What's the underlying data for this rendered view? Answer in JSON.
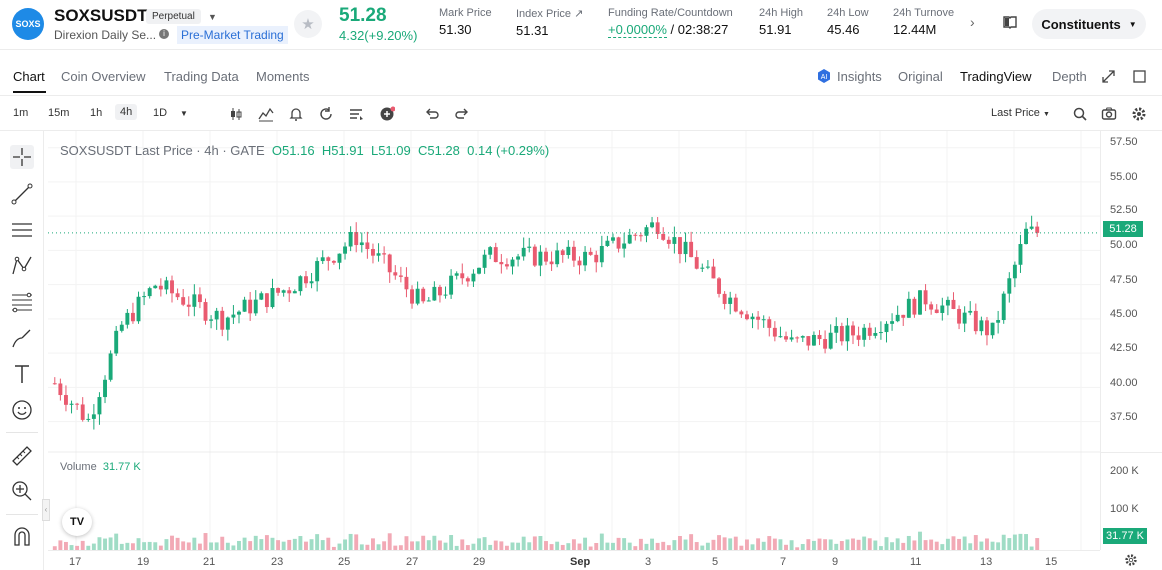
{
  "header": {
    "logo_text": "SOXS",
    "symbol": "SOXSUSDT",
    "contract_badge": "Perpetual",
    "subname": "Direxion Daily Se...",
    "pre_market": "Pre-Market Trading",
    "last_price": "51.28",
    "change": "4.32(+9.20%)",
    "stats": [
      {
        "label": "Mark Price",
        "value": "51.30"
      },
      {
        "label": "Index Price ↗",
        "value": "51.31"
      },
      {
        "label": "Funding Rate/Countdown",
        "value_green": "+0.0000%",
        "value": "/ 02:38:27"
      },
      {
        "label": "24h High",
        "value": "51.91"
      },
      {
        "label": "24h Low",
        "value": "45.46"
      },
      {
        "label": "24h Turnove",
        "value": "12.44M"
      }
    ],
    "constituents_label": "Constituents"
  },
  "tabs": [
    "Chart",
    "Coin Overview",
    "Trading Data",
    "Moments"
  ],
  "right_tabs": [
    "Insights",
    "Original",
    "TradingView",
    "Depth"
  ],
  "toolbar": {
    "timeframes": [
      "1m",
      "15m",
      "1h",
      "4h",
      "1D"
    ],
    "active_timeframe": "4h",
    "price_type": "Last Price"
  },
  "legend": {
    "title": "SOXSUSDT Last Price · 4h · GATE",
    "o": "O51.16",
    "h": "H51.91",
    "l": "L51.09",
    "c": "C51.28",
    "chg": "0.14 (+0.29%)"
  },
  "volume_legend": {
    "label": "Volume",
    "value": "31.77 K"
  },
  "yaxis": {
    "price_ticks": [
      "57.50",
      "55.00",
      "52.50",
      "50.00",
      "47.50",
      "45.00",
      "42.50",
      "40.00",
      "37.50"
    ],
    "last_price_label": "51.28",
    "volume_ticks": [
      "200 K",
      "100 K"
    ],
    "last_volume_label": "31.77 K"
  },
  "xaxis": {
    "ticks": [
      "17",
      "19",
      "21",
      "23",
      "25",
      "27",
      "29",
      "Sep",
      "3",
      "5",
      "7",
      "9",
      "11",
      "13",
      "15"
    ]
  },
  "colors": {
    "up": "#1aa979",
    "down": "#e95a6f",
    "up_vol": "#9fdcc5",
    "down_vol": "#f2a9b5"
  },
  "chart_data": {
    "type": "candlestick",
    "interval": "4h",
    "x_start": "Aug 16",
    "price_range": [
      35.5,
      58.5
    ],
    "last_price": 51.28,
    "key_points": [
      {
        "date": "Aug 16",
        "close": 40.3
      },
      {
        "date": "Aug 17",
        "close": 37.6
      },
      {
        "date": "Aug 18",
        "close": 44.5
      },
      {
        "date": "Aug 19",
        "close": 47.5
      },
      {
        "date": "Aug 21",
        "close": 45.0
      },
      {
        "date": "Aug 23",
        "close": 47.3
      },
      {
        "date": "Aug 25",
        "close": 51.0
      },
      {
        "date": "Aug 27",
        "close": 46.0
      },
      {
        "date": "Aug 29",
        "close": 49.6
      },
      {
        "date": "Sep 1",
        "close": 49.5
      },
      {
        "date": "Sep 3",
        "close": 52.0
      },
      {
        "date": "Sep 5",
        "close": 46.8
      },
      {
        "date": "Sep 7",
        "close": 43.2
      },
      {
        "date": "Sep 9",
        "close": 44.0
      },
      {
        "date": "Sep 11",
        "close": 46.5
      },
      {
        "date": "Sep 13",
        "close": 44.0
      },
      {
        "date": "Sep 14",
        "close": 51.28
      }
    ],
    "volume_max_k": 230,
    "last_volume_k": 31.77
  }
}
